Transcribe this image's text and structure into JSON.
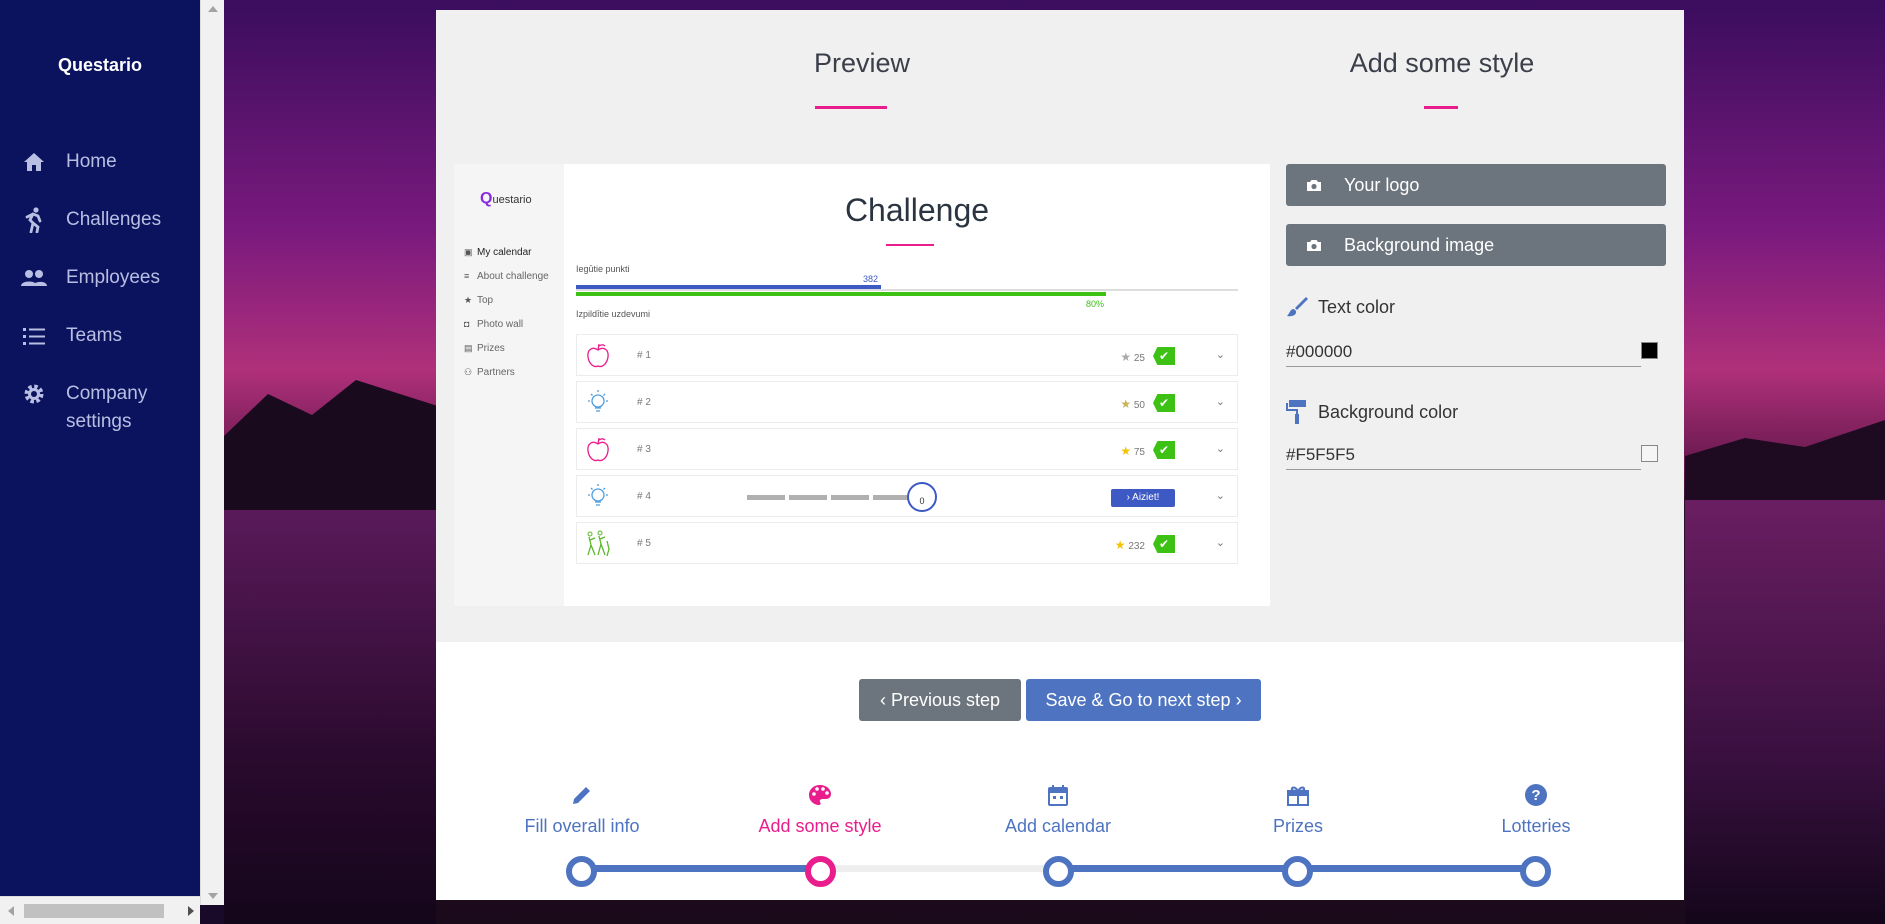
{
  "sidebar": {
    "brand": "Questario",
    "items": [
      {
        "label": "Home"
      },
      {
        "label": "Challenges"
      },
      {
        "label": "Employees"
      },
      {
        "label": "Teams"
      },
      {
        "label": "Company settings"
      }
    ]
  },
  "sections": {
    "preview_title": "Preview",
    "style_title": "Add some style"
  },
  "preview": {
    "logo": "uestario",
    "logo_q": "Q",
    "nav": [
      "My calendar",
      "About challenge",
      "Top",
      "Photo wall",
      "Prizes",
      "Partners"
    ],
    "title": "Challenge",
    "points_label": "Iegūtie punkti",
    "points_value": "382",
    "points_fraction": 0.46,
    "tasks_label": "Izpildītie uzdevumi",
    "tasks_value": "80%",
    "tasks_fraction": 0.8,
    "rows": [
      {
        "num": "# 1",
        "stars": "25",
        "done": true
      },
      {
        "num": "# 2",
        "stars": "50",
        "done": true
      },
      {
        "num": "# 3",
        "stars": "75",
        "done": true
      },
      {
        "num": "# 4",
        "knob": "0",
        "action": "Aiziet!"
      },
      {
        "num": "# 5",
        "stars": "232",
        "done": true
      }
    ]
  },
  "style": {
    "logo_button": "Your logo",
    "bg_image_button": "Background image",
    "text_color_label": "Text color",
    "text_color_value": "#000000",
    "bg_color_label": "Background color",
    "bg_color_value": "#F5F5F5"
  },
  "actions": {
    "prev": "Previous step",
    "next": "Save & Go to next step"
  },
  "steps": [
    {
      "label": "Fill overall info",
      "icon": "pencil-icon"
    },
    {
      "label": "Add some style",
      "icon": "palette-icon",
      "active": true
    },
    {
      "label": "Add calendar",
      "icon": "calendar-icon"
    },
    {
      "label": "Prizes",
      "icon": "gift-icon"
    },
    {
      "label": "Lotteries",
      "icon": "question-icon"
    }
  ],
  "colors": {
    "sidebar": "#0c135e",
    "accent": "#e91e8c",
    "primary": "#4e74c1",
    "secondary": "#6c757d"
  }
}
